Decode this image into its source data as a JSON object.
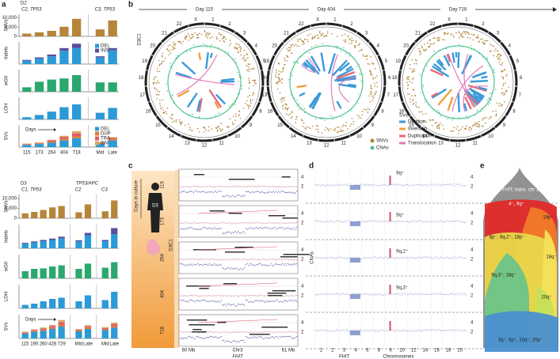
{
  "panel_a": {
    "label": "a",
    "blocks": [
      {
        "header": "D2",
        "groups": [
          {
            "name": "C2, TP53",
            "days": [
              "115",
              "173",
              "264",
              "404",
              "718"
            ]
          },
          {
            "name": "C3, TP53",
            "days": [
              "Mid",
              "Late"
            ]
          }
        ],
        "days_label": "Days",
        "rows": [
          {
            "name": "SNVs",
            "ylim": [
              0,
              12000
            ],
            "yticks": [
              {
                "value": 10000,
                "label": "10,000"
              },
              {
                "value": 5000,
                "label": "5,000"
              },
              0
            ],
            "series": [
              {
                "color": "#b5853a",
                "values": [
                  1500,
                  2200,
                  3000,
                  5200,
                  9500,
                  3800,
                  8600
                ]
              }
            ]
          },
          {
            "name": "Indels",
            "ylim": [
              0,
              1
            ],
            "series": [
              {
                "name": "DEL",
                "color": "#2c9ad6",
                "values": [
                  0.15,
                  0.25,
                  0.35,
                  0.6,
                  0.72,
                  0.3,
                  0.62
                ]
              },
              {
                "name": "INS",
                "color": "#5b4d9c",
                "values": [
                  0.04,
                  0.05,
                  0.08,
                  0.12,
                  0.2,
                  0.05,
                  0.1
                ]
              }
            ]
          },
          {
            "name": "wGII",
            "ylim": [
              0,
              1
            ],
            "series": [
              {
                "color": "#2aa86e",
                "values": [
                  0.2,
                  0.45,
                  0.55,
                  0.6,
                  0.75,
                  0.42,
                  0.42
                ]
              }
            ]
          },
          {
            "name": "LOH",
            "ylim": [
              0,
              1
            ],
            "series": [
              {
                "color": "#2c9ad6",
                "values": [
                  0.1,
                  0.2,
                  0.35,
                  0.55,
                  0.68,
                  0.3,
                  0.52
                ]
              }
            ]
          },
          {
            "name": "SVs",
            "ylim": [
              0,
              1
            ],
            "series": [
              {
                "name": "DEL",
                "color": "#2c9ad6",
                "values": [
                  0.1,
                  0.14,
                  0.2,
                  0.3,
                  0.4,
                  0.15,
                  0.3
                ]
              },
              {
                "name": "DUP",
                "color": "#e07a3a",
                "values": [
                  0.02,
                  0.03,
                  0.05,
                  0.08,
                  0.1,
                  0.03,
                  0.06
                ]
              },
              {
                "name": "TRA",
                "color": "#e05a6a",
                "values": [
                  0.02,
                  0.02,
                  0.05,
                  0.08,
                  0.12,
                  0.02,
                  0.05
                ]
              },
              {
                "name": "INV",
                "color": "#d9a760",
                "values": [
                  0.02,
                  0.02,
                  0.03,
                  0.05,
                  0.1,
                  0.02,
                  0.04
                ]
              }
            ]
          }
        ]
      },
      {
        "header": "D3",
        "note": "TP53/APC",
        "groups": [
          {
            "name": "C1, TP53",
            "days": [
              "115",
              "190",
              "260",
              "428",
              "729"
            ]
          },
          {
            "name": "C2",
            "days": [
              "Mid",
              "Late"
            ]
          },
          {
            "name": "C3",
            "days": [
              "Mid",
              "Late"
            ]
          }
        ],
        "days_label": "Days",
        "rows": [
          {
            "name": "SNVs",
            "ylim": [
              0,
              12000
            ],
            "yticks": [
              {
                "value": 10000,
                "label": "10,000"
              },
              {
                "value": 5000,
                "label": "5,000"
              },
              0
            ],
            "series": [
              {
                "color": "#b5853a",
                "values": [
                  2500,
                  3200,
                  4200,
                  5500,
                  6200,
                  3000,
                  7000,
                  3500,
                  9000
                ]
              }
            ]
          },
          {
            "name": "Indels",
            "ylim": [
              0,
              1
            ],
            "series": [
              {
                "color": "#2c9ad6",
                "values": [
                  0.2,
                  0.25,
                  0.3,
                  0.35,
                  0.42,
                  0.3,
                  0.55,
                  0.3,
                  0.6
                ]
              },
              {
                "color": "#5b4d9c",
                "values": [
                  0.03,
                  0.04,
                  0.05,
                  0.06,
                  0.07,
                  0.04,
                  0.1,
                  0.05,
                  0.25
                ]
              }
            ]
          },
          {
            "name": "wGII",
            "ylim": [
              0,
              1
            ],
            "series": [
              {
                "color": "#2aa86e",
                "values": [
                  0.3,
                  0.4,
                  0.42,
                  0.5,
                  0.55,
                  0.4,
                  0.62,
                  0.45,
                  0.68
                ]
              }
            ]
          },
          {
            "name": "LOH",
            "ylim": [
              0,
              1
            ],
            "series": [
              {
                "color": "#2c9ad6",
                "values": [
                  0.15,
                  0.2,
                  0.3,
                  0.4,
                  0.45,
                  0.3,
                  0.55,
                  0.35,
                  0.7
                ]
              }
            ]
          },
          {
            "name": "SVs",
            "ylim": [
              0,
              1
            ],
            "series": [
              {
                "color": "#2c9ad6",
                "values": [
                  0.2,
                  0.28,
                  0.32,
                  0.4,
                  0.5,
                  0.3,
                  0.4,
                  0.35,
                  0.45
                ]
              },
              {
                "color": "#e07a3a",
                "values": [
                  0.03,
                  0.04,
                  0.05,
                  0.06,
                  0.08,
                  0.04,
                  0.06,
                  0.05,
                  0.08
                ]
              },
              {
                "color": "#e05a6a",
                "values": [
                  0.03,
                  0.03,
                  0.05,
                  0.06,
                  0.1,
                  0.03,
                  0.05,
                  0.04,
                  0.08
                ]
              },
              {
                "color": "#d9a760",
                "values": [
                  0.02,
                  0.03,
                  0.04,
                  0.05,
                  0.1,
                  0.03,
                  0.05,
                  0.04,
                  0.06
                ]
              }
            ]
          }
        ]
      }
    ]
  },
  "panel_b": {
    "label": "b",
    "sample": "D3C1",
    "days": [
      "Day 115",
      "Day 404",
      "Day 718"
    ],
    "chromosomes": [
      "1",
      "2",
      "3",
      "4",
      "5",
      "6",
      "7",
      "8",
      "9",
      "10",
      "11",
      "12",
      "13",
      "14",
      "15",
      "16",
      "17",
      "18",
      "19",
      "20",
      "21",
      "22",
      "X"
    ],
    "tracks": [
      {
        "name": "SNVs",
        "color": "#b5853a"
      },
      {
        "name": "CNAs",
        "color": "#4fc28f"
      }
    ],
    "sv_title": "SVs",
    "svs": [
      {
        "name": "Deletion",
        "color": "#3a9ad9"
      },
      {
        "name": "Inversion",
        "color": "#f0a040"
      },
      {
        "name": "Duplication",
        "color": "#e86a7a"
      },
      {
        "name": "Translocation",
        "color": "#e07ab8"
      }
    ]
  },
  "panel_c": {
    "label": "c",
    "days_title": "Days in culture",
    "donor": "D3",
    "sample": "D3C1",
    "days": [
      "115",
      "173",
      "264",
      "404",
      "718"
    ],
    "yticks": [
      "2",
      "4"
    ],
    "x_left": "60 Mb",
    "x_mid": "Chr3",
    "x_right": "61 Mb",
    "gene": "FHIT"
  },
  "panel_d": {
    "label": "d",
    "y_label": "CNAs",
    "yticks": [
      "2",
      "4"
    ],
    "events": [
      "9q⁺",
      "9q⁺",
      "9q,2⁺",
      "9q,3⁺"
    ],
    "chromosomes": [
      "1",
      "2",
      "3",
      "4",
      "6",
      "8",
      "9",
      "10",
      "12",
      "14",
      "16",
      "18",
      "20"
    ],
    "gene": "FHIT",
    "x_label": "Chromosomes"
  },
  "panel_e": {
    "label": "e",
    "clones": [
      "9p⁻, FHIT, trans. chr 11–14",
      "4⁻, 9q⁺",
      "19p⁻",
      "8p⁻, 9q,2⁺, 18p⁻",
      "18q⁻",
      "9q,3⁺, 18q⁻",
      "20q⁺",
      "3q⁺, 6p⁺, 10q⁺, 20p⁻"
    ]
  }
}
